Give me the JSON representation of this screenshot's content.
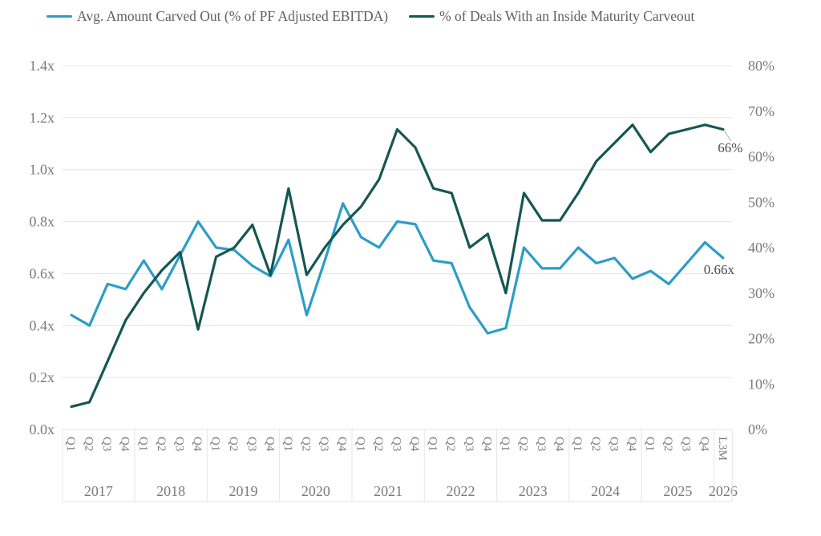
{
  "legend": {
    "items": [
      {
        "id": "avg-carved",
        "label": "Avg. Amount Carved Out (% of PF Adjusted EBITDA)",
        "color": "#2B9DC7"
      },
      {
        "id": "inside-maturity",
        "label": "% of Deals With an Inside Maturity Carveout",
        "color": "#155752"
      }
    ]
  },
  "colors": {
    "series1": "#2B9DC7",
    "series2": "#155752",
    "grid": "#e4e4e4",
    "axis_text": "#7a7a7a",
    "annotation_text": "#4c4c4c",
    "leader_line": "#b5b5b5",
    "background": "#ffffff"
  },
  "chart_data": {
    "type": "line",
    "grid": "horizontal",
    "legend_position": "top",
    "x_groups": [
      {
        "year": "2017",
        "labels": [
          "Q1",
          "Q2",
          "Q3",
          "Q4"
        ]
      },
      {
        "year": "2018",
        "labels": [
          "Q1",
          "Q2",
          "Q3",
          "Q4"
        ]
      },
      {
        "year": "2019",
        "labels": [
          "Q1",
          "Q2",
          "Q3",
          "Q4"
        ]
      },
      {
        "year": "2020",
        "labels": [
          "Q1",
          "Q2",
          "Q3",
          "Q4"
        ]
      },
      {
        "year": "2021",
        "labels": [
          "Q1",
          "Q2",
          "Q3",
          "Q4"
        ]
      },
      {
        "year": "2022",
        "labels": [
          "Q1",
          "Q2",
          "Q3",
          "Q4"
        ]
      },
      {
        "year": "2023",
        "labels": [
          "Q1",
          "Q2",
          "Q3",
          "Q4"
        ]
      },
      {
        "year": "2024",
        "labels": [
          "Q1",
          "Q2",
          "Q3",
          "Q4"
        ]
      },
      {
        "year": "2025",
        "labels": [
          "Q1",
          "Q2",
          "Q3",
          "Q4"
        ]
      },
      {
        "year": "2026",
        "labels": [
          "L3M"
        ]
      }
    ],
    "left_axis": {
      "ticks": [
        "0.0x",
        "0.2x",
        "0.4x",
        "0.6x",
        "0.8x",
        "1.0x",
        "1.2x",
        "1.4x"
      ],
      "min": 0,
      "max": 1.4
    },
    "right_axis": {
      "ticks": [
        "0%",
        "10%",
        "20%",
        "30%",
        "40%",
        "50%",
        "60%",
        "70%",
        "80%"
      ],
      "min": 0,
      "max": 80
    },
    "series": [
      {
        "name": "Avg. Amount Carved Out (% of PF Adjusted EBITDA)",
        "axis": "left",
        "unit": "x",
        "color": "#2B9DC7",
        "values": [
          0.44,
          0.4,
          0.56,
          0.54,
          0.65,
          0.54,
          0.67,
          0.8,
          0.7,
          0.69,
          0.63,
          0.59,
          0.73,
          0.44,
          0.65,
          0.87,
          0.74,
          0.7,
          0.8,
          0.79,
          0.65,
          0.64,
          0.47,
          0.37,
          0.39,
          0.7,
          0.62,
          0.62,
          0.7,
          0.64,
          0.66,
          0.58,
          0.61,
          0.56,
          0.64,
          0.72,
          0.66
        ]
      },
      {
        "name": "% of Deals With an Inside Maturity Carveout",
        "axis": "right",
        "unit": "%",
        "color": "#155752",
        "values": [
          5,
          6,
          15,
          24,
          30,
          35,
          39,
          22,
          38,
          40,
          45,
          34,
          53,
          34,
          40,
          45,
          49,
          55,
          66,
          62,
          53,
          52,
          40,
          43,
          30,
          52,
          46,
          46,
          52,
          59,
          63,
          67,
          61,
          65,
          66,
          67,
          66
        ]
      }
    ],
    "annotations": [
      {
        "text": "0.66x",
        "series": 0,
        "leader": false
      },
      {
        "text": "66%",
        "series": 1,
        "leader": true
      }
    ]
  }
}
